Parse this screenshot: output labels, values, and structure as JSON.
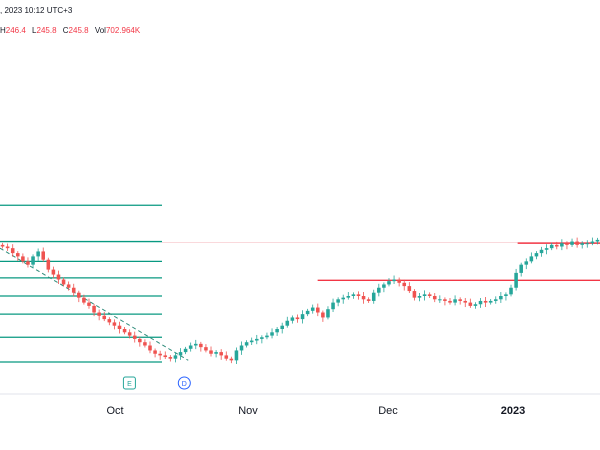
{
  "header": {
    "datetime_label": ", 2023 10:12 UTC+3",
    "ohlc": [
      {
        "key": "H",
        "value": "246.4"
      },
      {
        "key": "L",
        "value": "245.8"
      },
      {
        "key": "C",
        "value": "245.8"
      }
    ],
    "volume_label": "Vol",
    "volume_value": "702.964K"
  },
  "colors": {
    "up": "#26a69a",
    "down": "#ef5350",
    "fib": "#089981",
    "resistance": "#f23645",
    "dashed_trend": "#2e8b7a",
    "text": "#131722",
    "value_red": "#f23645",
    "marker_stroke": "#26a69a",
    "marker_fill": "#e8f5e9",
    "dividend_stroke": "#2962ff"
  },
  "markers": [
    {
      "name": "earnings-marker",
      "letter": "E",
      "date": "Oct 3"
    },
    {
      "name": "dividend-marker",
      "letter": "D",
      "date": "Oct 17"
    }
  ],
  "chart_data": {
    "type": "candlestick",
    "x_ticks": [
      {
        "label": "Oct",
        "bold": false
      },
      {
        "label": "Nov",
        "bold": false
      },
      {
        "label": "Dec",
        "bold": false
      },
      {
        "label": "2023",
        "bold": true
      }
    ],
    "price_range": [
      110,
      220
    ],
    "fib_levels": [
      215,
      193,
      181,
      171,
      160,
      149,
      135,
      120
    ],
    "resistance_levels": [
      {
        "price": 169.5,
        "x_start": "Nov 20",
        "x_end": "Jan 31"
      },
      {
        "price": 192,
        "x_start": "Jan 10",
        "x_end": "Jan 31"
      }
    ],
    "trend_segment": {
      "start": [
        "Aug 31",
        189
      ],
      "end": [
        "Oct 18",
        121
      ]
    },
    "candles_closes": [
      190,
      189,
      186,
      184,
      181,
      179,
      184,
      187,
      182,
      176,
      173,
      170,
      167,
      165,
      162,
      159,
      156,
      154,
      150,
      148,
      146,
      144,
      142,
      140,
      138,
      136,
      134,
      132,
      130,
      127,
      125,
      124,
      123,
      122,
      124,
      126,
      128,
      130,
      131,
      129,
      127,
      125,
      126,
      124,
      122,
      121,
      127,
      130,
      132,
      133,
      134,
      135,
      136,
      138,
      140,
      142,
      145,
      147,
      146,
      149,
      151,
      153,
      150,
      147,
      152,
      156,
      158,
      159,
      160,
      161,
      160,
      158,
      157,
      162,
      165,
      167,
      169,
      170,
      168,
      166,
      163,
      159,
      160,
      161,
      160,
      158,
      158,
      157,
      156,
      158,
      157,
      156,
      154,
      155,
      157,
      156,
      157,
      158,
      160,
      161,
      165,
      174,
      179,
      181,
      184,
      186,
      188,
      189,
      191,
      190,
      192,
      191,
      193,
      191,
      192,
      192,
      193,
      194
    ]
  }
}
